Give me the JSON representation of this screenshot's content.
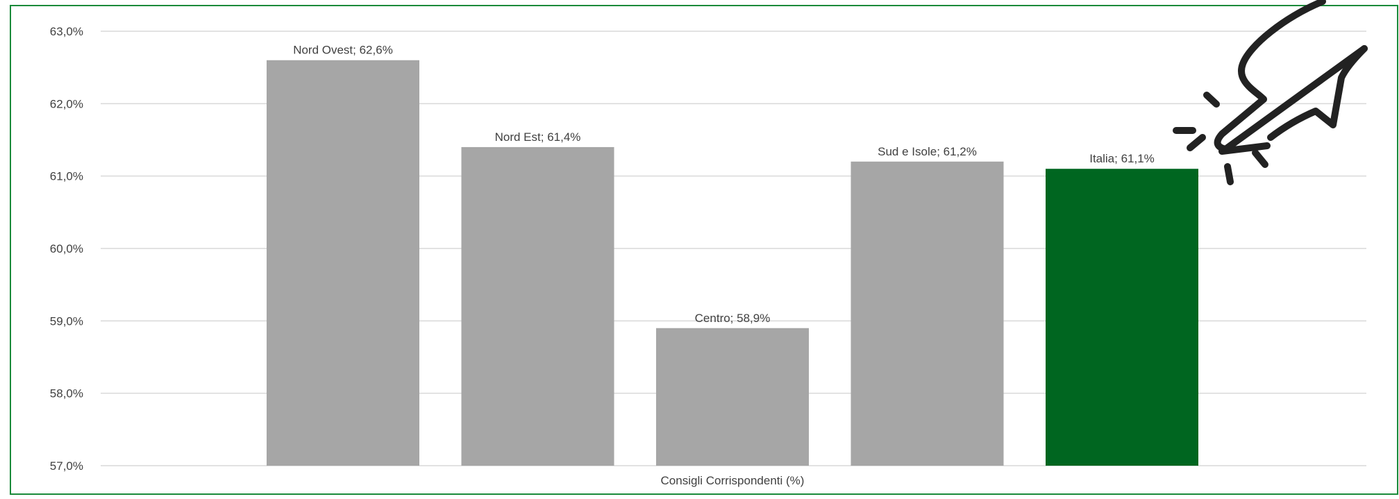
{
  "chart_data": {
    "type": "bar",
    "categories": [
      "Nord Ovest",
      "Nord Est",
      "Centro",
      "Sud e Isole",
      "Italia"
    ],
    "values": [
      62.6,
      61.4,
      58.9,
      61.2,
      61.1
    ],
    "data_labels": [
      "Nord Ovest; 62,6%",
      "Nord Est; 61,4%",
      "Centro; 58,9%",
      "Sud e Isole; 61,2%",
      "Italia; 61,1%"
    ],
    "xlabel": "Consigli Corrispondenti (%)",
    "ylim": [
      57.0,
      63.0
    ],
    "yticks": [
      57.0,
      58.0,
      59.0,
      60.0,
      61.0,
      62.0,
      63.0
    ],
    "ytick_labels": [
      "57,0%",
      "58,0%",
      "59,0%",
      "60,0%",
      "61,0%",
      "62,0%",
      "63,0%"
    ],
    "grid": true,
    "colors": {
      "default_bar": "#a6a6a6",
      "highlight_bar": "#006620",
      "frame": "#1a8a3a",
      "gridline": "#d9d9d9",
      "text": "#404040",
      "icon": "#222222"
    },
    "highlight_category": "Italia"
  },
  "decoration": {
    "icon": "plug-icon"
  }
}
